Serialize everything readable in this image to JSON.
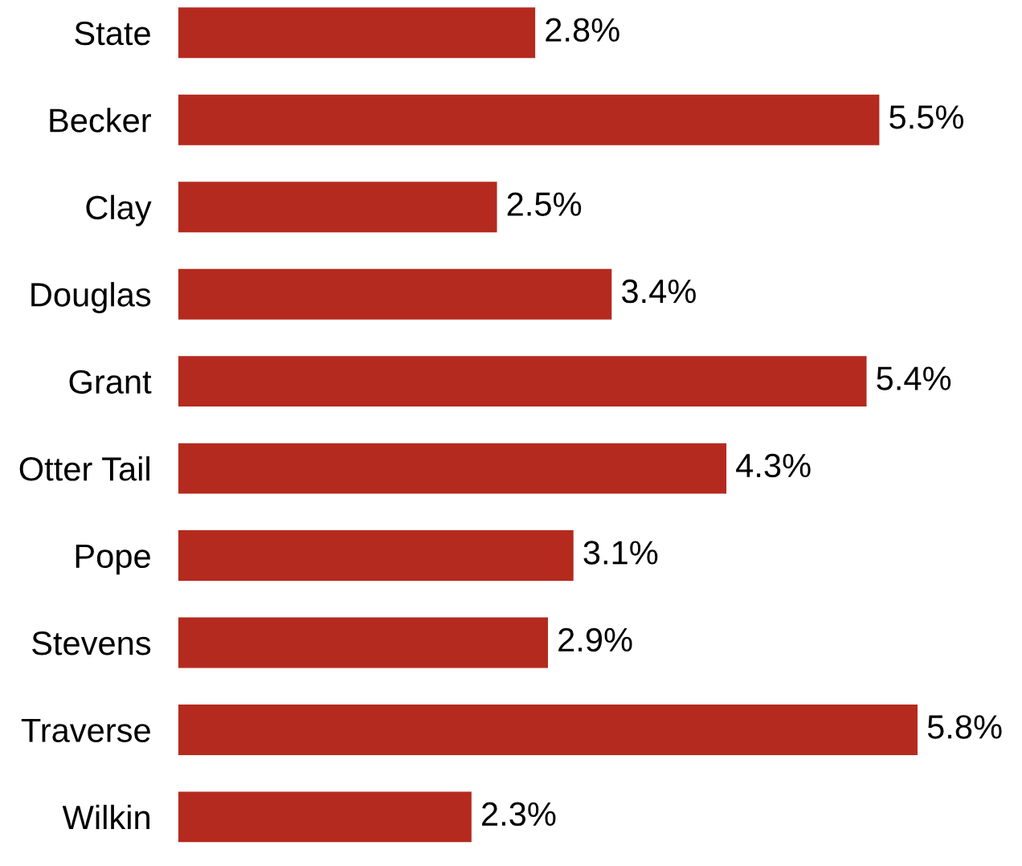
{
  "chart_data": {
    "type": "bar",
    "orientation": "horizontal",
    "categories": [
      "State",
      "Becker",
      "Clay",
      "Douglas",
      "Grant",
      "Otter Tail",
      "Pope",
      "Stevens",
      "Traverse",
      "Wilkin"
    ],
    "values": [
      2.8,
      5.5,
      2.5,
      3.4,
      5.4,
      4.3,
      3.1,
      2.9,
      5.8,
      2.3
    ],
    "value_labels": [
      "2.8%",
      "5.5%",
      "2.5%",
      "3.4%",
      "5.4%",
      "4.3%",
      "3.1%",
      "2.9%",
      "5.8%",
      "2.3%"
    ],
    "color": "#b52a1e",
    "grid": false,
    "legend": false
  }
}
